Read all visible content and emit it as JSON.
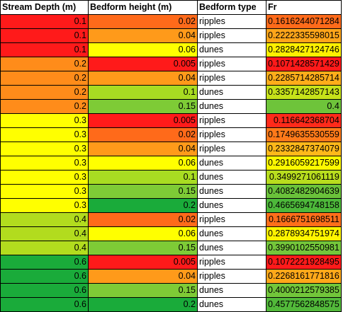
{
  "colors": {
    "red": "#ff1a1a",
    "orange_red": "#ff5a14",
    "orange": "#ff8c1a",
    "yellow": "#ffff00",
    "yellow_green": "#c0e01a",
    "light_green": "#8ccf33",
    "green": "#1aab3a"
  },
  "table": {
    "headers": [
      "Stream Depth (m)",
      "Bedform height (m)",
      "Bedform type",
      "Fr"
    ],
    "rows": [
      {
        "depth": "0.1",
        "depth_color": "#ff1a1a",
        "height": "0.02",
        "height_color": "#ff6a1a",
        "type": "ripples",
        "fr": "0.1616244071284",
        "fr_color": "#ff6a1a"
      },
      {
        "depth": "0.1",
        "depth_color": "#ff1a1a",
        "height": "0.04",
        "height_color": "#ff9a1a",
        "type": "ripples",
        "fr": "0.2222335598015",
        "fr_color": "#ffa51a"
      },
      {
        "depth": "0.1",
        "depth_color": "#ff1a1a",
        "height": "0.06",
        "height_color": "#ffff00",
        "type": "dunes",
        "fr": "0.2828427124746",
        "fr_color": "#fff000"
      },
      {
        "depth": "0.2",
        "depth_color": "#ff8c1a",
        "height": "0.005",
        "height_color": "#ff1a1a",
        "type": "ripples",
        "fr": "0.1071428571429",
        "fr_color": "#ff1a1a"
      },
      {
        "depth": "0.2",
        "depth_color": "#ff8c1a",
        "height": "0.04",
        "height_color": "#ff9a1a",
        "type": "ripples",
        "fr": "0.2285714285714",
        "fr_color": "#ffad1a"
      },
      {
        "depth": "0.2",
        "depth_color": "#ff8c1a",
        "height": "0.1",
        "height_color": "#a8dc22",
        "type": "dunes",
        "fr": "0.3357142857143",
        "fr_color": "#c6e21a"
      },
      {
        "depth": "0.2",
        "depth_color": "#ff8c1a",
        "height": "0.15",
        "height_color": "#7ecb36",
        "type": "dunes",
        "fr": "0.4",
        "fr_color": "#6ec43a"
      },
      {
        "depth": "0.3",
        "depth_color": "#ffff00",
        "height": "0.005",
        "height_color": "#ff1a1a",
        "type": "ripples",
        "fr": "0.116642368704",
        "fr_color": "#ff2a1a"
      },
      {
        "depth": "0.3",
        "depth_color": "#ffff00",
        "height": "0.02",
        "height_color": "#ff6a1a",
        "type": "ripples",
        "fr": "0.1749635530559",
        "fr_color": "#ff7a1a"
      },
      {
        "depth": "0.3",
        "depth_color": "#ffff00",
        "height": "0.04",
        "height_color": "#ff9a1a",
        "type": "ripples",
        "fr": "0.2332847374079",
        "fr_color": "#ffb81a"
      },
      {
        "depth": "0.3",
        "depth_color": "#ffff00",
        "height": "0.06",
        "height_color": "#ffff00",
        "type": "dunes",
        "fr": "0.2916059217599",
        "fr_color": "#fcf800"
      },
      {
        "depth": "0.3",
        "depth_color": "#ffff00",
        "height": "0.1",
        "height_color": "#a8dc22",
        "type": "dunes",
        "fr": "0.3499271061119",
        "fr_color": "#b8dd1e"
      },
      {
        "depth": "0.3",
        "depth_color": "#ffff00",
        "height": "0.15",
        "height_color": "#7ecb36",
        "type": "dunes",
        "fr": "0.4082482904639",
        "fr_color": "#6ac23a"
      },
      {
        "depth": "0.3",
        "depth_color": "#ffff00",
        "height": "0.2",
        "height_color": "#1aab3a",
        "type": "dunes",
        "fr": "0.4665694748158",
        "fr_color": "#4db83a"
      },
      {
        "depth": "0.4",
        "depth_color": "#b2dc1e",
        "height": "0.02",
        "height_color": "#ff6a1a",
        "type": "ripples",
        "fr": "0.1666751698511",
        "fr_color": "#ff6e1a"
      },
      {
        "depth": "0.4",
        "depth_color": "#b2dc1e",
        "height": "0.06",
        "height_color": "#ffff00",
        "type": "dunes",
        "fr": "0.2878934751974",
        "fr_color": "#fff400"
      },
      {
        "depth": "0.4",
        "depth_color": "#b2dc1e",
        "height": "0.15",
        "height_color": "#7ecb36",
        "type": "dunes",
        "fr": "0.3990102550981",
        "fr_color": "#74c63a"
      },
      {
        "depth": "0.6",
        "depth_color": "#1aab3a",
        "height": "0.005",
        "height_color": "#ff1a1a",
        "type": "ripples",
        "fr": "0.1072221928495",
        "fr_color": "#ff1a1a"
      },
      {
        "depth": "0.6",
        "depth_color": "#1aab3a",
        "height": "0.04",
        "height_color": "#ff9a1a",
        "type": "ripples",
        "fr": "0.2268161771816",
        "fr_color": "#ffa81a"
      },
      {
        "depth": "0.6",
        "depth_color": "#1aab3a",
        "height": "0.15",
        "height_color": "#7ecb36",
        "type": "dunes",
        "fr": "0.4000212579385",
        "fr_color": "#72c63a"
      },
      {
        "depth": "0.6",
        "depth_color": "#1aab3a",
        "height": "0.2",
        "height_color": "#1aab3a",
        "type": "dunes",
        "fr": "0.4577562848575",
        "fr_color": "#52b93a"
      }
    ]
  }
}
